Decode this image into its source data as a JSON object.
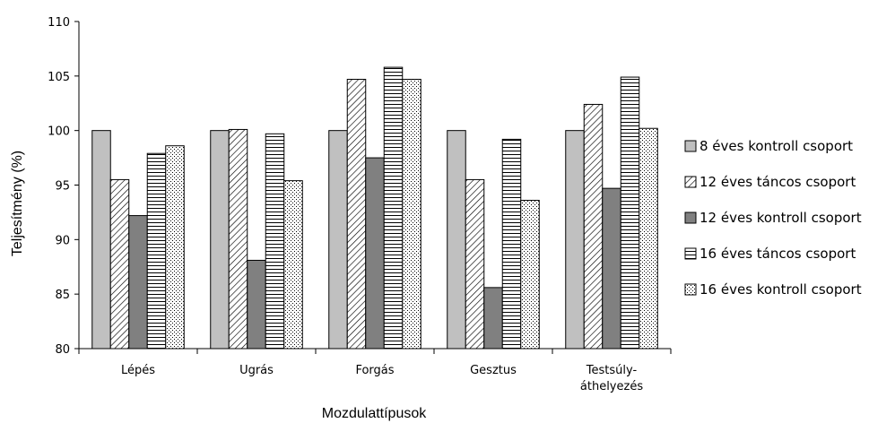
{
  "chart_data": {
    "type": "bar",
    "xlabel": "Mozdulattípusok",
    "ylabel": "Teljesítmény (%)",
    "ylim": [
      80,
      110
    ],
    "yticks": [
      "80",
      "85",
      "90",
      "95",
      "100",
      "105",
      "110"
    ],
    "categories": [
      [
        "Lépés"
      ],
      [
        "Ugrás"
      ],
      [
        "Forgás"
      ],
      [
        "Gesztus"
      ],
      [
        "Testsúly-",
        "áthelyezés"
      ]
    ],
    "legend_position": "right",
    "grid": false,
    "series": [
      {
        "name": "8 éves kontroll csoport",
        "pattern": "solid-light",
        "color": "#c0c0c0",
        "values": [
          100,
          100,
          100,
          100,
          100
        ]
      },
      {
        "name": "12 éves táncos csoport",
        "pattern": "diagonal",
        "color": "#000000",
        "values": [
          95.5,
          100.1,
          104.7,
          95.5,
          102.4
        ]
      },
      {
        "name": "12 éves kontroll csoport",
        "pattern": "solid-dark",
        "color": "#808080",
        "values": [
          92.2,
          88.1,
          97.5,
          85.6,
          94.7
        ]
      },
      {
        "name": "16 éves táncos csoport",
        "pattern": "horizontal",
        "color": "#000000",
        "values": [
          97.9,
          99.7,
          105.8,
          99.2,
          104.9
        ]
      },
      {
        "name": "16 éves kontroll csoport",
        "pattern": "dotted",
        "color": "#000000",
        "values": [
          98.6,
          95.4,
          104.7,
          93.6,
          100.2
        ]
      }
    ]
  }
}
